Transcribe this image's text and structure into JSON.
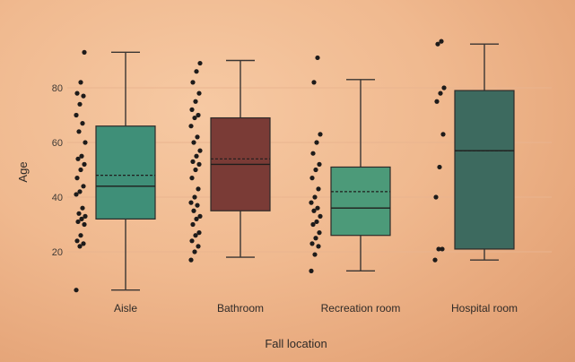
{
  "chart_data": {
    "type": "box",
    "xlabel": "Fall location",
    "ylabel": "Age",
    "yticks": [
      20,
      40,
      60,
      80
    ],
    "ylim": [
      0,
      100
    ],
    "grid": true,
    "categories": [
      "Aisle",
      "Bathroom",
      "Recreation room",
      "Hospital room"
    ],
    "colors": [
      "#3f8f78",
      "#7a3b36",
      "#4c9a79",
      "#3d6a5f"
    ],
    "boxes": [
      {
        "whisker_low": 6,
        "q1": 32,
        "median": 44,
        "mean": 48,
        "q3": 66,
        "whisker_high": 93
      },
      {
        "whisker_low": 18,
        "q1": 35,
        "median": 52,
        "mean": 54,
        "q3": 69,
        "whisker_high": 90
      },
      {
        "whisker_low": 13,
        "q1": 26,
        "median": 36,
        "mean": 42,
        "q3": 51,
        "whisker_high": 83
      },
      {
        "whisker_low": 17,
        "q1": 21,
        "median": 57,
        "mean": 57,
        "q3": 79,
        "whisker_high": 96
      }
    ],
    "points": [
      [
        6,
        22,
        23,
        24,
        26,
        30,
        31,
        32,
        33,
        34,
        36,
        41,
        42,
        44,
        47,
        50,
        52,
        54,
        55,
        60,
        64,
        67,
        70,
        74,
        77,
        78,
        82,
        93
      ],
      [
        17,
        20,
        22,
        24,
        26,
        27,
        30,
        32,
        33,
        35,
        37,
        38,
        40,
        43,
        47,
        50,
        52,
        53,
        55,
        57,
        60,
        62,
        66,
        69,
        70,
        72,
        75,
        78,
        82,
        86,
        89
      ],
      [
        13,
        19,
        22,
        23,
        25,
        27,
        30,
        31,
        33,
        35,
        36,
        38,
        40,
        43,
        47,
        50,
        52,
        56,
        60,
        63,
        82,
        91
      ],
      [
        17,
        21,
        21,
        40,
        51,
        63,
        75,
        78,
        80,
        96,
        97
      ]
    ]
  }
}
